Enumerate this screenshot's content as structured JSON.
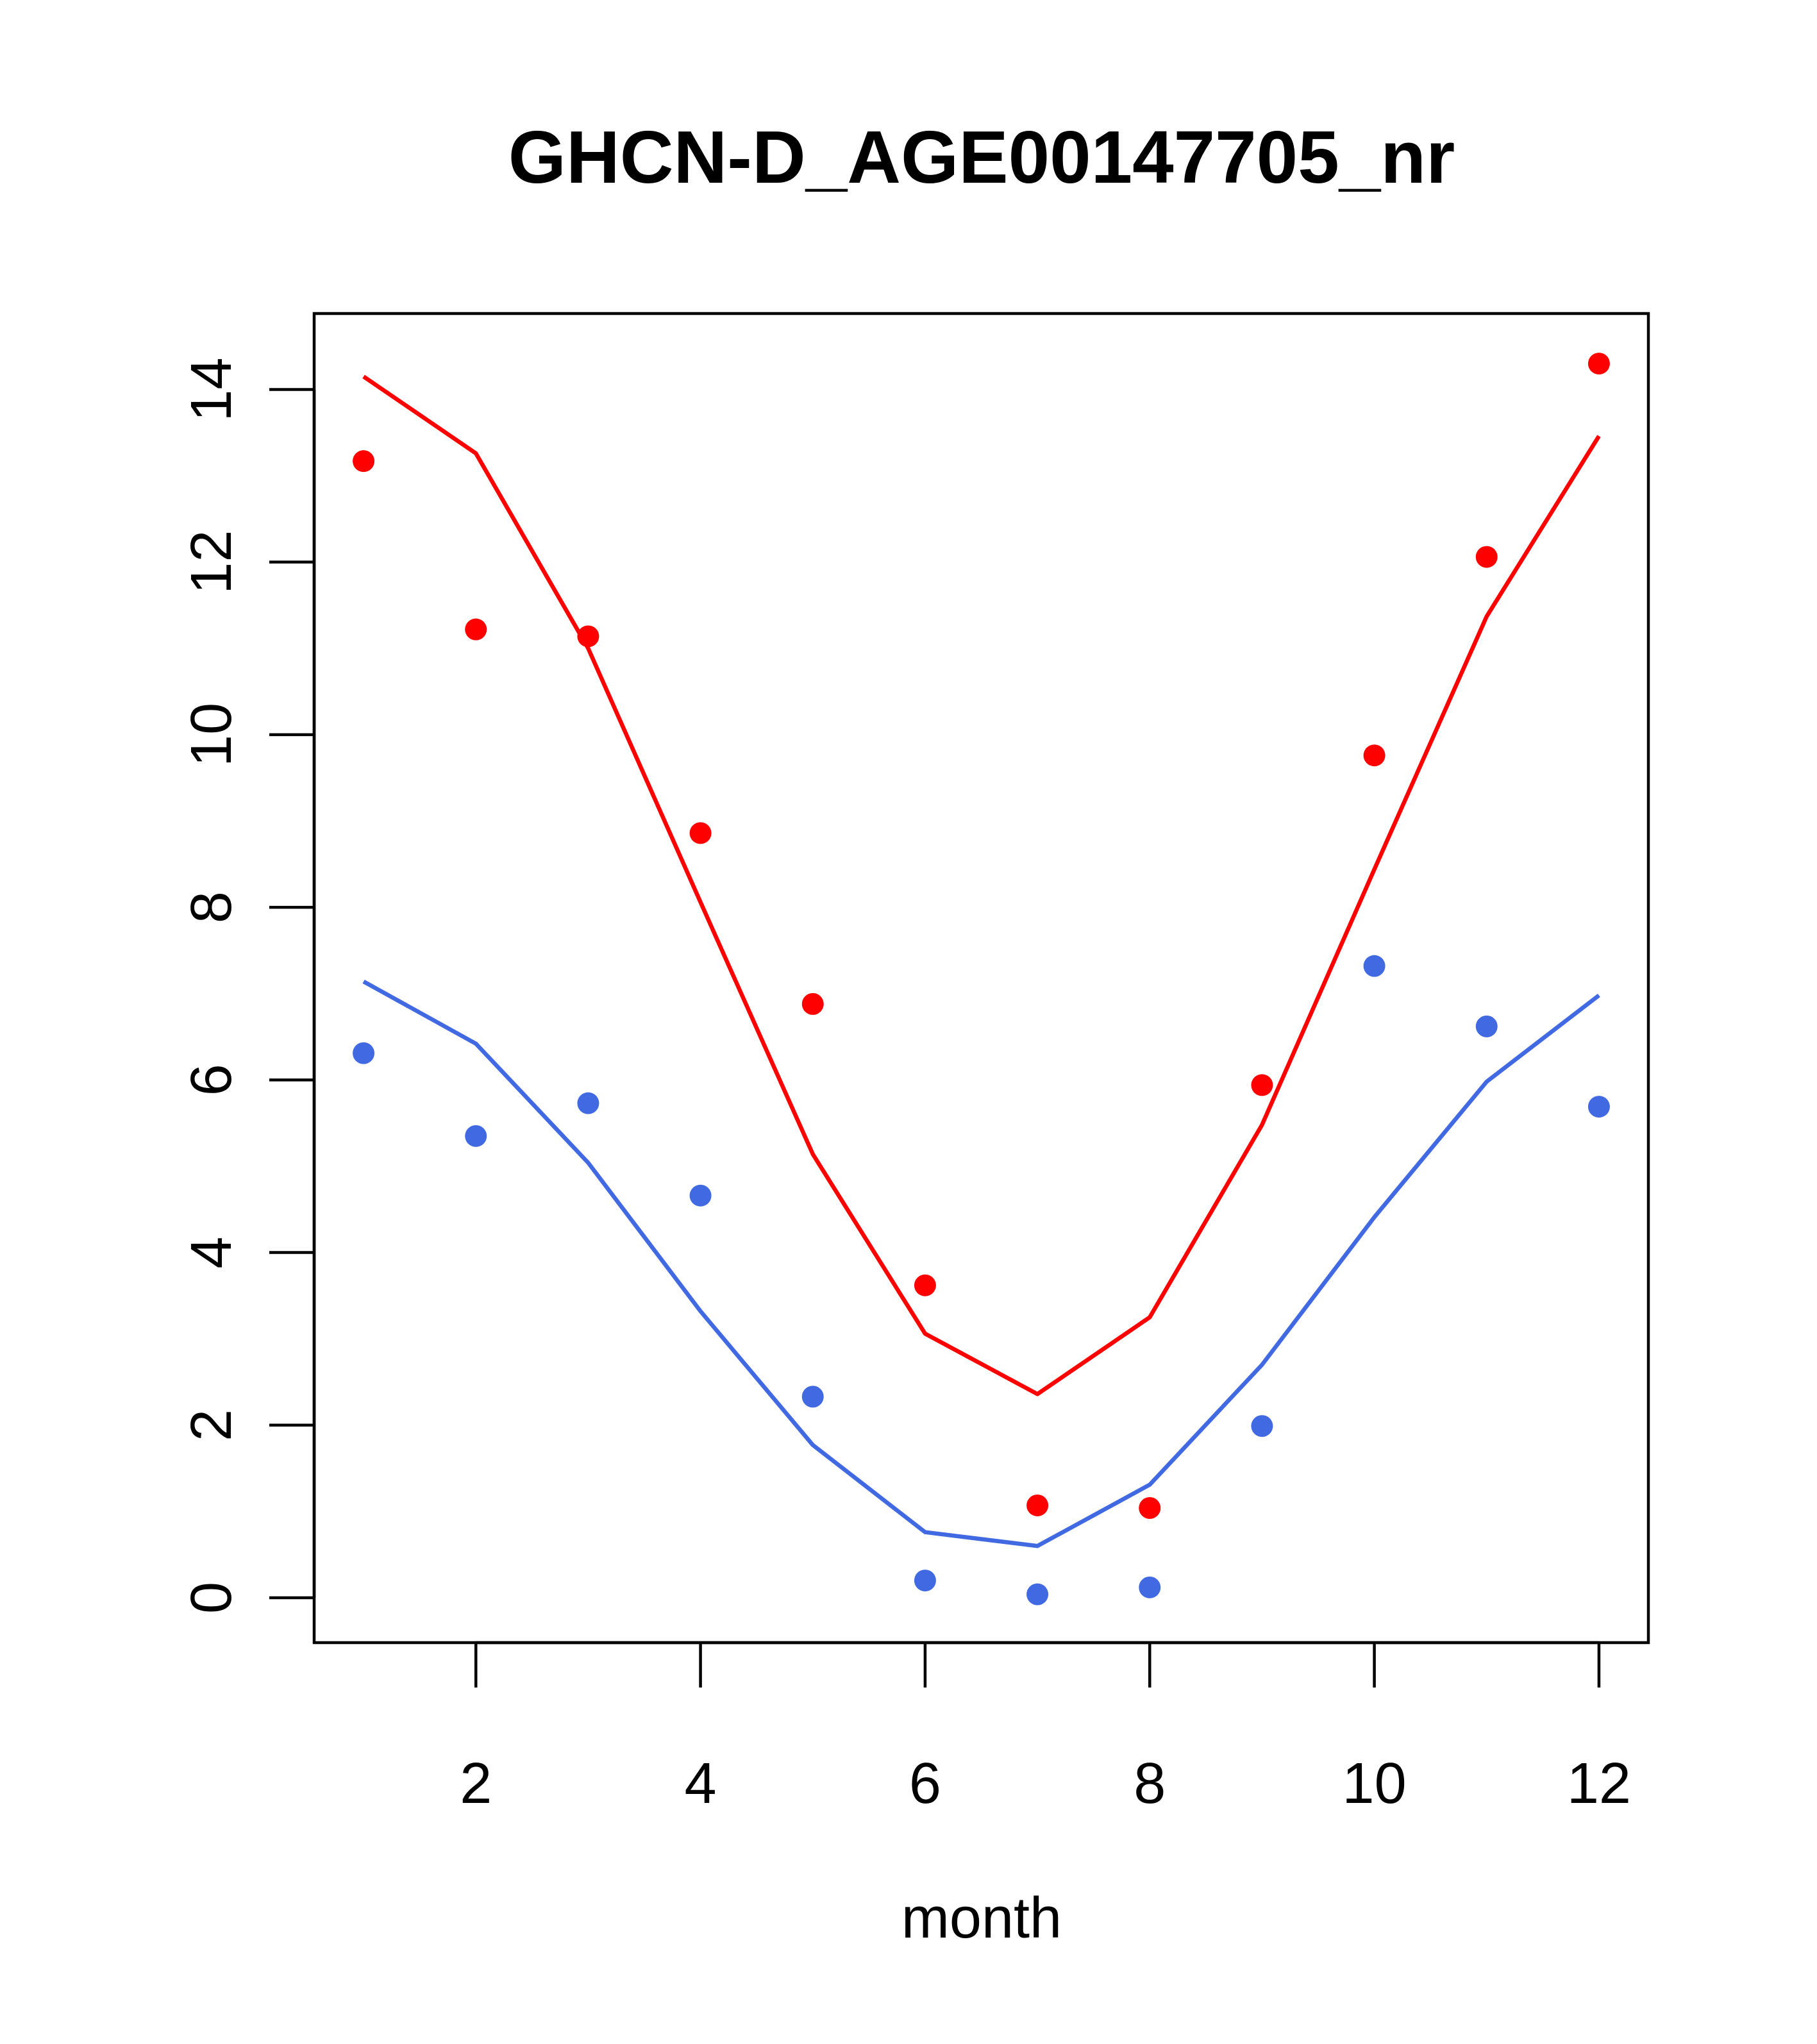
{
  "chart_data": {
    "type": "scatter",
    "title": "GHCN-D_AGE00147705_nr",
    "xlabel": "month",
    "ylabel": "",
    "xlim": [
      0.56,
      12.44
    ],
    "ylim": [
      -0.52,
      14.88
    ],
    "x_ticks": [
      2,
      4,
      6,
      8,
      10,
      12
    ],
    "y_ticks": [
      0,
      2,
      4,
      6,
      8,
      10,
      12,
      14
    ],
    "x_tick_labels": [
      "2",
      "4",
      "6",
      "8",
      "10",
      "12"
    ],
    "y_tick_labels": [
      "0",
      "2",
      "4",
      "6",
      "8",
      "10",
      "12",
      "14"
    ],
    "grid": false,
    "x": [
      1,
      2,
      3,
      4,
      5,
      6,
      7,
      8,
      9,
      10,
      11,
      12
    ],
    "series": [
      {
        "kind": "points",
        "color": "#ff0000",
        "values": [
          13.17,
          11.22,
          11.14,
          8.86,
          6.88,
          3.62,
          1.07,
          1.04,
          5.94,
          9.76,
          12.06,
          14.3
        ]
      },
      {
        "kind": "line",
        "color": "#ff0000",
        "values": [
          14.15,
          13.26,
          11.0,
          8.06,
          5.14,
          3.06,
          2.36,
          3.25,
          5.48,
          8.44,
          11.37,
          13.46
        ]
      },
      {
        "kind": "points",
        "color": "#4169e1",
        "values": [
          6.31,
          5.35,
          5.73,
          4.66,
          2.33,
          0.2,
          0.04,
          0.12,
          1.99,
          7.32,
          6.62,
          5.69
        ]
      },
      {
        "kind": "line",
        "color": "#4169e1",
        "values": [
          7.14,
          6.42,
          5.04,
          3.32,
          1.77,
          0.76,
          0.6,
          1.31,
          2.7,
          4.41,
          5.98,
          6.98
        ]
      }
    ]
  }
}
